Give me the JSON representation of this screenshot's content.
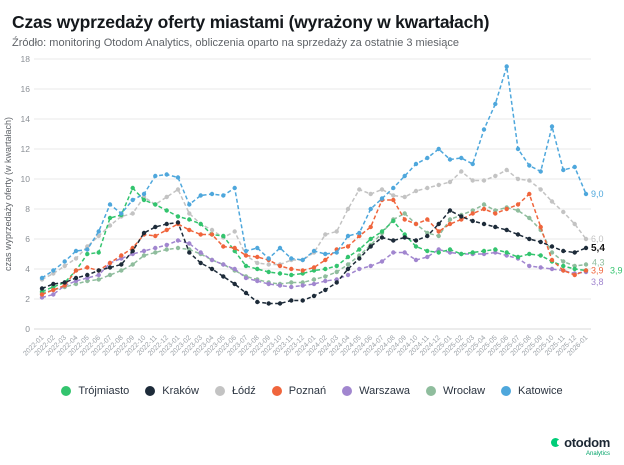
{
  "page": {
    "title": "Czas wyprzedaży oferty miastami (wyrażony w kwartałach)",
    "subtitle": "Źródło: monitoring Otodom Analytics, obliczenia oparto na sprzedaży za ostatnie 3 miesiące"
  },
  "branding": {
    "logo_text": "otodom",
    "logo_sub": "Analytics",
    "logo_color": "#00cd78"
  },
  "chart_data": {
    "type": "line",
    "title": "Czas wyprzedaży oferty miastami (wyrażony w kwartałach)",
    "xlabel": "",
    "ylabel": "czas wyprzedaży oferty (w kwartałach)",
    "ylim": [
      0,
      18
    ],
    "ytick_step": 2,
    "grid": true,
    "legend_position": "bottom",
    "marker": "circle",
    "line_style": "dashed",
    "categories": [
      "2022-01",
      "2022-02",
      "2022-03",
      "2022-04",
      "2022-05",
      "2022-06",
      "2022-07",
      "2022-08",
      "2022-09",
      "2022-10",
      "2022-11",
      "2022-12",
      "2023-01",
      "2023-02",
      "2023-03",
      "2023-04",
      "2023-05",
      "2023-06",
      "2023-07",
      "2023-08",
      "2023-09",
      "2023-10",
      "2023-11",
      "2023-12",
      "2024-01",
      "2024-02",
      "2024-03",
      "2024-04",
      "2024-05",
      "2024-06",
      "2024-07",
      "2024-08",
      "2024-09",
      "2024-10",
      "2024-11",
      "2024-12",
      "2025-01",
      "2025-02",
      "2025-03",
      "2025-04",
      "2025-05",
      "2025-06",
      "2025-07",
      "2025-08",
      "2025-09",
      "2025-10",
      "2025-11",
      "2025-12",
      "2026-01"
    ],
    "series": [
      {
        "name": "Trójmiasto",
        "color": "#33c46e",
        "z": 4,
        "end_label": "3,9",
        "label_dx": 24,
        "label_dy": 3,
        "values": [
          2.5,
          2.8,
          3.1,
          3.9,
          5.0,
          5.1,
          7.4,
          7.6,
          9.4,
          8.6,
          8.3,
          7.9,
          7.5,
          7.3,
          7.0,
          6.3,
          6.2,
          5.2,
          4.2,
          4.0,
          3.8,
          3.7,
          3.6,
          3.7,
          3.9,
          4.0,
          4.2,
          4.8,
          5.3,
          6.0,
          6.5,
          7.2,
          6.3,
          5.5,
          5.2,
          5.1,
          5.3,
          5.0,
          5.1,
          5.2,
          5.3,
          5.1,
          4.8,
          5.0,
          4.9,
          4.5,
          4.2,
          4.0,
          3.9
        ]
      },
      {
        "name": "Kraków",
        "color": "#1d2b39",
        "z": 6,
        "end_label": "5,4",
        "label_dx": 5,
        "label_dy": 3,
        "label_bold": true,
        "values": [
          2.7,
          3.0,
          3.1,
          3.4,
          3.6,
          3.9,
          4.1,
          4.3,
          5.2,
          6.4,
          6.8,
          7.0,
          7.1,
          5.1,
          4.4,
          4.0,
          3.5,
          3.0,
          2.4,
          1.8,
          1.7,
          1.7,
          1.9,
          1.9,
          2.2,
          2.6,
          3.1,
          4.0,
          4.7,
          5.5,
          6.1,
          5.9,
          6.1,
          5.9,
          6.2,
          7.0,
          7.9,
          7.5,
          7.2,
          7.0,
          6.8,
          6.6,
          6.3,
          6.0,
          5.8,
          5.5,
          5.2,
          5.1,
          5.4
        ]
      },
      {
        "name": "Łódź",
        "color": "#c3c3c3",
        "z": 1,
        "end_label": "6,0",
        "label_dx": 5,
        "label_dy": 3,
        "values": [
          3.3,
          3.7,
          4.2,
          4.7,
          5.5,
          6.2,
          6.9,
          7.5,
          7.7,
          8.8,
          8.3,
          8.8,
          9.3,
          7.7,
          7.0,
          6.6,
          6.1,
          6.5,
          4.9,
          4.4,
          4.3,
          4.3,
          4.6,
          4.6,
          5.1,
          6.3,
          6.5,
          8.0,
          9.3,
          9.0,
          9.3,
          8.9,
          8.8,
          9.2,
          9.4,
          9.6,
          9.8,
          10.5,
          9.9,
          9.9,
          10.2,
          10.6,
          10.0,
          9.9,
          9.3,
          8.5,
          7.8,
          7.0,
          6.0
        ]
      },
      {
        "name": "Poznań",
        "color": "#f0653c",
        "z": 5,
        "end_label": "3,9",
        "label_dx": 5,
        "label_dy": 3,
        "values": [
          2.3,
          2.6,
          2.9,
          3.9,
          4.1,
          3.9,
          4.4,
          4.9,
          5.4,
          6.3,
          6.2,
          6.6,
          7.0,
          6.6,
          6.3,
          6.3,
          5.5,
          5.4,
          4.9,
          4.8,
          4.6,
          4.2,
          4.0,
          3.9,
          4.1,
          4.6,
          5.3,
          5.5,
          6.2,
          6.8,
          8.6,
          8.6,
          7.3,
          7.0,
          7.3,
          6.5,
          7.0,
          7.3,
          7.7,
          8.0,
          7.7,
          8.0,
          8.3,
          9.0,
          6.8,
          4.6,
          3.9,
          3.6,
          3.9
        ]
      },
      {
        "name": "Warszawa",
        "color": "#a186cf",
        "z": 3,
        "end_label": "3,8",
        "label_dx": 5,
        "label_dy": 13,
        "values": [
          2.1,
          2.3,
          2.9,
          3.2,
          3.4,
          3.6,
          4.4,
          4.7,
          5.0,
          5.2,
          5.4,
          5.6,
          5.9,
          5.7,
          5.1,
          4.6,
          4.3,
          4.0,
          3.4,
          3.2,
          3.0,
          2.9,
          2.8,
          2.9,
          3.0,
          3.2,
          3.3,
          3.6,
          4.0,
          4.2,
          4.5,
          5.1,
          5.1,
          4.6,
          4.8,
          5.3,
          5.1,
          5.0,
          5.0,
          5.0,
          5.1,
          4.9,
          4.7,
          4.2,
          4.1,
          4.0,
          3.9,
          3.7,
          3.8
        ]
      },
      {
        "name": "Wrocław",
        "color": "#8fbd9d",
        "z": 2,
        "end_label": "4,3",
        "label_dx": 6,
        "label_dy": 1,
        "values": [
          2.4,
          2.6,
          2.8,
          3.0,
          3.2,
          3.3,
          3.6,
          3.9,
          4.3,
          4.9,
          5.1,
          5.3,
          5.4,
          5.3,
          5.0,
          4.6,
          4.3,
          3.9,
          3.5,
          3.3,
          3.1,
          3.0,
          3.1,
          3.1,
          3.3,
          3.5,
          3.8,
          4.3,
          4.9,
          5.6,
          6.4,
          7.3,
          7.7,
          7.0,
          6.4,
          6.2,
          7.3,
          7.6,
          7.9,
          8.3,
          7.9,
          8.1,
          7.9,
          7.4,
          6.6,
          5.1,
          4.5,
          4.2,
          4.3
        ]
      },
      {
        "name": "Katowice",
        "color": "#4ea7dc",
        "z": 7,
        "end_label": "9,0",
        "label_dx": 5,
        "label_dy": 3,
        "values": [
          3.4,
          3.9,
          4.5,
          5.2,
          5.3,
          6.5,
          8.3,
          7.7,
          8.6,
          9.0,
          10.2,
          10.3,
          10.1,
          8.3,
          8.9,
          9.0,
          8.9,
          9.4,
          5.2,
          5.4,
          4.7,
          5.4,
          4.7,
          4.6,
          5.2,
          5.0,
          5.1,
          6.2,
          6.4,
          8.0,
          8.7,
          9.4,
          10.2,
          11.0,
          11.4,
          12.0,
          11.3,
          11.4,
          11.0,
          13.3,
          15.0,
          17.5,
          12.0,
          10.9,
          10.5,
          13.5,
          10.6,
          10.8,
          9.0
        ]
      }
    ]
  }
}
